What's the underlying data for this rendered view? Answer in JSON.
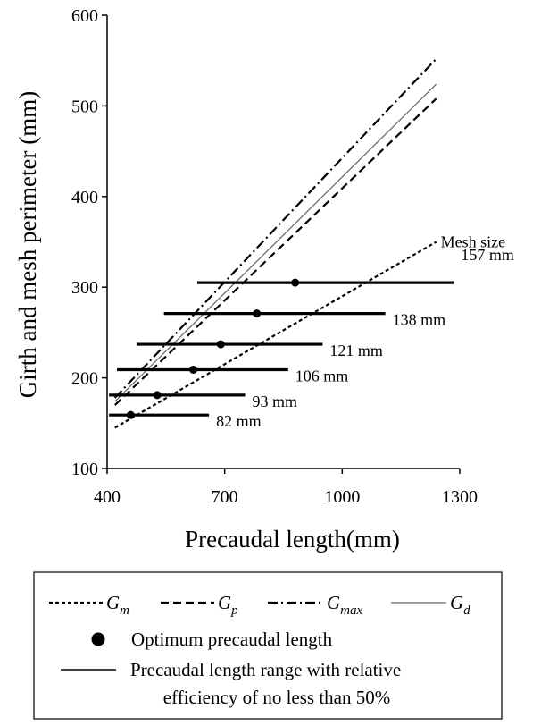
{
  "chart_data": {
    "type": "line",
    "xlabel": "Precaudal length(mm)",
    "ylabel": "Girth and mesh perimeter (mm)",
    "xlim": [
      400,
      1300
    ],
    "ylim": [
      100,
      600
    ],
    "xticks": [
      400,
      700,
      1000,
      1300
    ],
    "yticks": [
      100,
      200,
      300,
      400,
      500,
      600
    ],
    "grid": false,
    "lines": [
      {
        "key": "Gm",
        "legend_main": "G",
        "legend_sub": "m",
        "style": "short-dash",
        "color": "#000000",
        "x": [
          420,
          1240
        ],
        "y": [
          145,
          350
        ]
      },
      {
        "key": "Gp",
        "legend_main": "G",
        "legend_sub": "p",
        "style": "dash",
        "color": "#000000",
        "x": [
          420,
          1240
        ],
        "y": [
          170,
          508
        ]
      },
      {
        "key": "Gmax",
        "legend_main": "G",
        "legend_sub": "max",
        "style": "dash-dot",
        "color": "#000000",
        "x": [
          420,
          1240
        ],
        "y": [
          178,
          552
        ]
      },
      {
        "key": "Gd",
        "legend_main": "G",
        "legend_sub": "d",
        "style": "solid-thin",
        "color": "#666666",
        "x": [
          420,
          1240
        ],
        "y": [
          174,
          524
        ]
      }
    ],
    "mesh_label": "Mesh size",
    "ranges": [
      {
        "mesh": "82 mm",
        "y": 159,
        "x_start": 405,
        "x_end": 660,
        "optimum_x": 460
      },
      {
        "mesh": "93 mm",
        "y": 181,
        "x_start": 405,
        "x_end": 752,
        "optimum_x": 528
      },
      {
        "mesh": "106 mm",
        "y": 209,
        "x_start": 425,
        "x_end": 862,
        "optimum_x": 620
      },
      {
        "mesh": "121 mm",
        "y": 237,
        "x_start": 475,
        "x_end": 950,
        "optimum_x": 690
      },
      {
        "mesh": "138 mm",
        "y": 271,
        "x_start": 545,
        "x_end": 1110,
        "optimum_x": 782
      },
      {
        "mesh": "157 mm",
        "y": 305,
        "x_start": 630,
        "x_end": 1285,
        "optimum_x": 880
      }
    ],
    "legend": {
      "placement": "bottom",
      "optimum_label": "Optimum precaudal length",
      "range_label_line1": "Precaudal length range with relative",
      "range_label_line2": "efficiency of no less than 50%"
    }
  }
}
